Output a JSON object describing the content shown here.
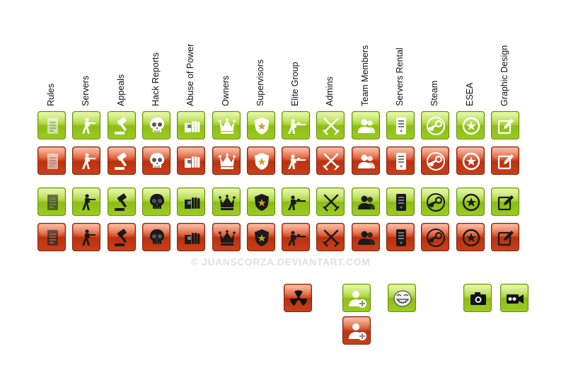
{
  "columns": [
    {
      "label": "Rules",
      "icon": "document-icon"
    },
    {
      "label": "Servers",
      "icon": "soldier-icon"
    },
    {
      "label": "Appeals",
      "icon": "gavel-icon"
    },
    {
      "label": "Hack Reports",
      "icon": "skull-icon"
    },
    {
      "label": "Abuse of Power",
      "icon": "fist-icon"
    },
    {
      "label": "Owners",
      "icon": "crown-icon"
    },
    {
      "label": "Supervisors",
      "icon": "badge-icon"
    },
    {
      "label": "Elite Group",
      "icon": "sniper-icon"
    },
    {
      "label": "Admins",
      "icon": "crossed-swords-icon"
    },
    {
      "label": "Team Members",
      "icon": "team-icon"
    },
    {
      "label": "Servers Rental",
      "icon": "server-icon"
    },
    {
      "label": "Steam",
      "icon": "steam-icon"
    },
    {
      "label": "ESEA",
      "icon": "esea-icon"
    },
    {
      "label": "Graphic Design",
      "icon": "pencil-icon"
    }
  ],
  "rows": [
    {
      "style": "white",
      "color": "green"
    },
    {
      "style": "white",
      "color": "red"
    },
    {
      "style": "black",
      "color": "green"
    },
    {
      "style": "black",
      "color": "red"
    }
  ],
  "extras": [
    {
      "icon": "radiation-icon",
      "color": "red"
    },
    {
      "icon": "add-user-icon",
      "color": "green"
    },
    {
      "icon": "add-user-icon",
      "color": "red"
    },
    {
      "icon": "troll-face-icon",
      "color": "green"
    },
    {
      "icon": "camera-icon",
      "color": "green"
    },
    {
      "icon": "video-camera-icon",
      "color": "green"
    }
  ],
  "watermark": "© JUANSCORZA.DEVIANTART.COM",
  "colors": {
    "green": "#9ccc22",
    "red": "#c8401a",
    "white_glyph": "#ffffff",
    "black_glyph": "#1a1a1a"
  }
}
